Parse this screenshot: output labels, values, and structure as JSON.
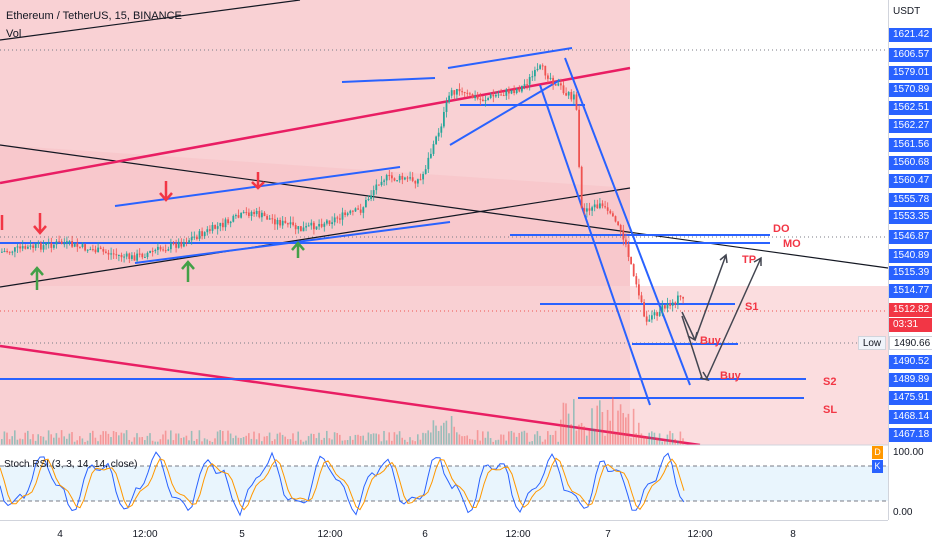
{
  "header": {
    "title": "Ethereum / TetherUS, 15, BINANCE",
    "vol_label": "Vol"
  },
  "indicator": {
    "label": "Stoch RSI (3, 3, 14, 14, close)",
    "badge_d": "D",
    "badge_k": "K"
  },
  "price_axis": {
    "currency": "USDT",
    "tags": [
      {
        "value": "1621.42",
        "color": "#2962ff"
      },
      {
        "value": "1606.57",
        "color": "#2962ff"
      },
      {
        "value": "1579.01",
        "color": "#2962ff"
      },
      {
        "value": "1570.89",
        "color": "#2962ff"
      },
      {
        "value": "1562.51",
        "color": "#2962ff"
      },
      {
        "value": "1562.27",
        "color": "#2962ff"
      },
      {
        "value": "1561.56",
        "color": "#2962ff"
      },
      {
        "value": "1560.68",
        "color": "#2962ff"
      },
      {
        "value": "1560.47",
        "color": "#2962ff"
      },
      {
        "value": "1555.78",
        "color": "#2962ff"
      },
      {
        "value": "1553.35",
        "color": "#2962ff"
      },
      {
        "value": "1546.87",
        "color": "#2962ff"
      },
      {
        "value": "1540.89",
        "color": "#2962ff"
      },
      {
        "value": "1515.39",
        "color": "#2962ff"
      },
      {
        "value": "1514.77",
        "color": "#2962ff"
      },
      {
        "value": "1512.82",
        "color": "#f23645"
      },
      {
        "value": "03:31",
        "color": "#f23645"
      },
      {
        "value": "1490.66",
        "color": "#ffffff"
      },
      {
        "value": "1490.52",
        "color": "#2962ff"
      },
      {
        "value": "1489.89",
        "color": "#2962ff"
      },
      {
        "value": "1475.91",
        "color": "#2962ff"
      },
      {
        "value": "1468.14",
        "color": "#2962ff"
      },
      {
        "value": "1467.18",
        "color": "#2962ff"
      }
    ],
    "low_label": "Low",
    "rsi_ticks": [
      "100.00",
      "0.00"
    ]
  },
  "time_axis": {
    "labels": [
      "4",
      "12:00",
      "5",
      "12:00",
      "6",
      "12:00",
      "7",
      "12:00",
      "8"
    ]
  },
  "annotations": {
    "do": "DO",
    "mo": "MO",
    "tp": "TP",
    "s1": "S1",
    "buy1": "Buy",
    "buy2": "Buy",
    "s2": "S2",
    "sl": "SL"
  },
  "chart_data": {
    "type": "candlestick",
    "title": "Ethereum / TetherUS, 15, BINANCE",
    "currency": "USDT",
    "ylim": [
      1460,
      1630
    ],
    "last_price": 1512.82,
    "countdown": "03:31",
    "low": 1490.66,
    "x": [
      "4",
      "12:00",
      "5",
      "12:00",
      "6",
      "12:00",
      "7",
      "12:00",
      "8"
    ],
    "levels": [
      {
        "label": "DO",
        "price": 1546.87
      },
      {
        "label": "MO",
        "price": 1540.89
      },
      {
        "label": "TP",
        "price": 1540.89
      },
      {
        "label": "S1",
        "price": 1514.77
      },
      {
        "label": "Buy",
        "price": 1490.52
      },
      {
        "label": "Buy",
        "price": 1489.89
      },
      {
        "label": "S2",
        "price": 1489.89
      },
      {
        "label": "SL",
        "price": 1475.91
      }
    ],
    "colors": {
      "up": "#26a69a",
      "down": "#ef5350",
      "zone": "#f8c9cc",
      "lines": "#2962ff",
      "trend": "#e91e63"
    },
    "indicator": {
      "name": "Stoch RSI (3, 3, 14, 14, close)",
      "ylim": [
        0,
        100
      ]
    }
  }
}
